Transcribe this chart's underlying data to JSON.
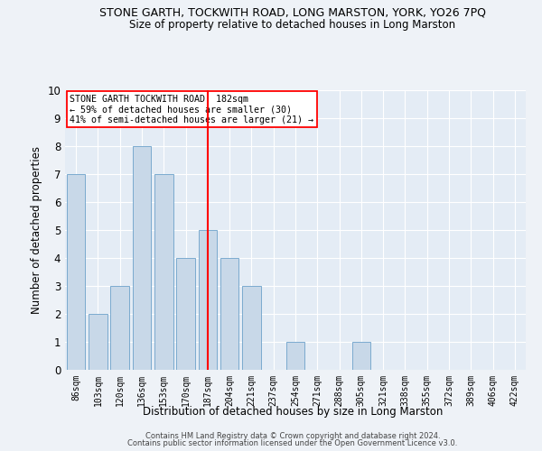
{
  "title": "STONE GARTH, TOCKWITH ROAD, LONG MARSTON, YORK, YO26 7PQ",
  "subtitle": "Size of property relative to detached houses in Long Marston",
  "xlabel": "Distribution of detached houses by size in Long Marston",
  "ylabel": "Number of detached properties",
  "categories": [
    "86sqm",
    "103sqm",
    "120sqm",
    "136sqm",
    "153sqm",
    "170sqm",
    "187sqm",
    "204sqm",
    "221sqm",
    "237sqm",
    "254sqm",
    "271sqm",
    "288sqm",
    "305sqm",
    "321sqm",
    "338sqm",
    "355sqm",
    "372sqm",
    "389sqm",
    "406sqm",
    "422sqm"
  ],
  "values": [
    7,
    2,
    3,
    8,
    7,
    4,
    5,
    4,
    3,
    0,
    1,
    0,
    0,
    1,
    0,
    0,
    0,
    0,
    0,
    0,
    0
  ],
  "bar_color": "#c8d8e8",
  "bar_edge_color": "#7baacf",
  "red_line_index": 6,
  "ylim": [
    0,
    10
  ],
  "yticks": [
    0,
    1,
    2,
    3,
    4,
    5,
    6,
    7,
    8,
    9,
    10
  ],
  "annotation_title": "STONE GARTH TOCKWITH ROAD: 182sqm",
  "annotation_line1": "← 59% of detached houses are smaller (30)",
  "annotation_line2": "41% of semi-detached houses are larger (21) →",
  "footer1": "Contains HM Land Registry data © Crown copyright and database right 2024.",
  "footer2": "Contains public sector information licensed under the Open Government Licence v3.0.",
  "bg_color": "#eef2f7",
  "plot_bg_color": "#e4ecf5"
}
